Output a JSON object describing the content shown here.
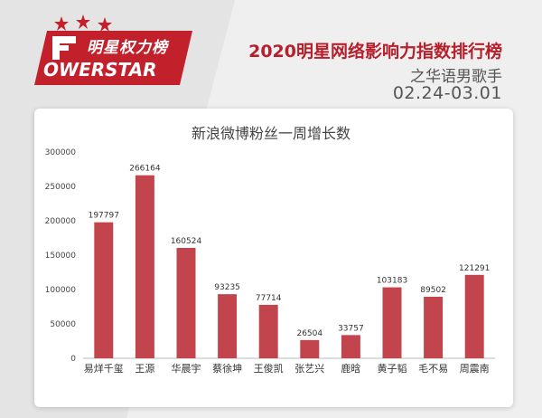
{
  "header": {
    "logo_cn": "明星权力榜",
    "logo_en": "OWERSTAR",
    "title": "2020明星网络影响力指数排行榜",
    "subtitle": "之华语男歌手",
    "date_range": "02.24-03.01"
  },
  "colors": {
    "bar": "#c2444c",
    "brand": "#c2202b",
    "title": "#b6202c"
  },
  "chart_data": {
    "type": "bar",
    "title": "新浪微博粉丝一周增长数",
    "xlabel": "",
    "ylabel": "",
    "categories": [
      "易烊千玺",
      "王源",
      "华晨宇",
      "蔡徐坤",
      "王俊凯",
      "张艺兴",
      "鹿晗",
      "黄子韬",
      "毛不易",
      "周震南"
    ],
    "values": [
      197797,
      266164,
      160524,
      93235,
      77714,
      26504,
      33757,
      103183,
      89502,
      121291
    ],
    "ylim": [
      0,
      300000
    ],
    "yticks": [
      0,
      50000,
      100000,
      150000,
      200000,
      250000,
      300000
    ],
    "grid": false,
    "data_labels": true
  }
}
